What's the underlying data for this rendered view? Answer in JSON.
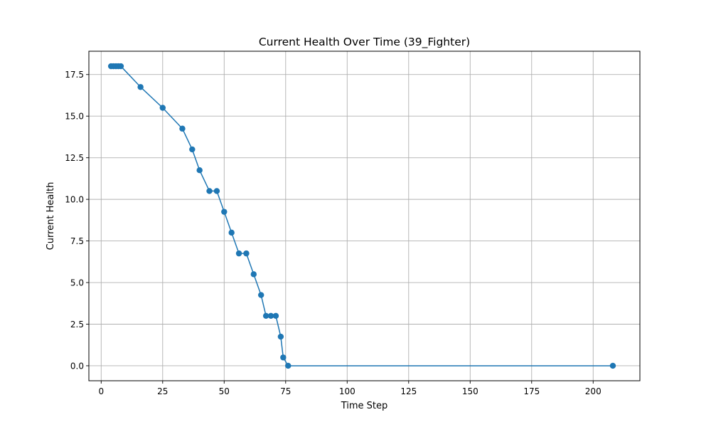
{
  "chart_data": {
    "type": "line",
    "title": "Current Health Over Time (39_Fighter)",
    "xlabel": "Time Step",
    "ylabel": "Current Health",
    "xlim": [
      -5,
      219
    ],
    "ylim": [
      -0.9,
      18.9
    ],
    "xticks": [
      0,
      25,
      50,
      75,
      100,
      125,
      150,
      175,
      200
    ],
    "xtick_labels": [
      "0",
      "25",
      "50",
      "75",
      "100",
      "125",
      "150",
      "175",
      "200"
    ],
    "yticks": [
      0,
      2.5,
      5,
      7.5,
      10,
      12.5,
      15,
      17.5
    ],
    "ytick_labels": [
      "0.0",
      "2.5",
      "5.0",
      "7.5",
      "10.0",
      "12.5",
      "15.0",
      "17.5"
    ],
    "grid": true,
    "legend": "none",
    "series": [
      {
        "color": "#1f77b4",
        "marker": "circle",
        "x": [
          4,
          5,
          6,
          7,
          8,
          16,
          25,
          33,
          37,
          40,
          44,
          47,
          50,
          53,
          56,
          59,
          62,
          65,
          67,
          69,
          71,
          73,
          74,
          76,
          208
        ],
        "y": [
          18,
          18,
          18,
          18,
          18,
          16.75,
          15.5,
          14.25,
          13,
          11.75,
          10.5,
          10.5,
          9.25,
          8,
          6.75,
          6.75,
          5.5,
          4.25,
          3,
          3,
          3,
          1.75,
          0.5,
          0,
          0
        ]
      }
    ]
  }
}
